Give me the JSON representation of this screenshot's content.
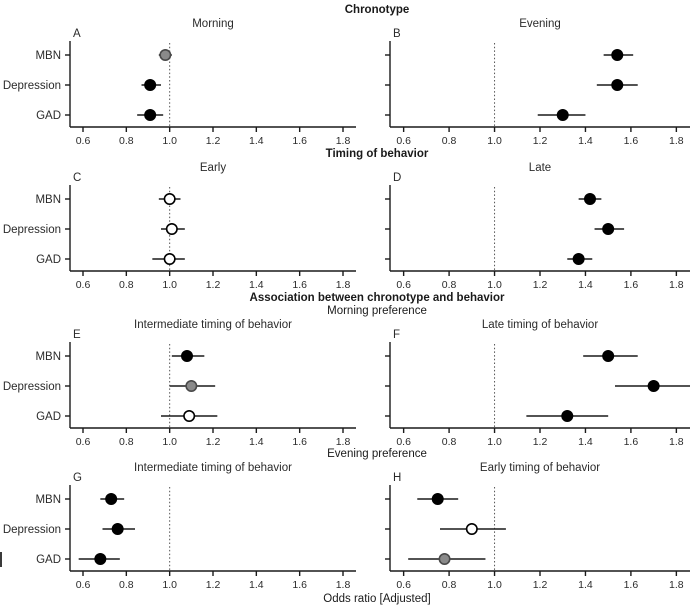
{
  "chart_data": {
    "type": "scatter",
    "subtype": "forest-plot",
    "xlabel": "Odds ratio [Adjusted]",
    "categories": [
      "MBN",
      "Depression",
      "GAD"
    ],
    "x_ticks": [
      "0.6",
      "0.8",
      "1.0",
      "1.2",
      "1.4",
      "1.6",
      "1.8"
    ],
    "xlim": [
      0.54,
      1.86
    ],
    "reference_line": 1.0,
    "grid": false,
    "marker_colors": {
      "black": "#000000",
      "gray": "#8a8a8a",
      "open": "#ffffff"
    },
    "sections": [
      {
        "title": "Chronotype",
        "panels": [
          {
            "letter": "A",
            "title": "Morning",
            "show_category_labels": true,
            "points": [
              {
                "category": "MBN",
                "or": 0.98,
                "ci": [
                  0.95,
                  1.01
                ],
                "style": "gray"
              },
              {
                "category": "Depression",
                "or": 0.91,
                "ci": [
                  0.87,
                  0.96
                ],
                "style": "black"
              },
              {
                "category": "GAD",
                "or": 0.91,
                "ci": [
                  0.85,
                  0.97
                ],
                "style": "black"
              }
            ]
          },
          {
            "letter": "B",
            "title": "Evening",
            "show_category_labels": false,
            "points": [
              {
                "category": "MBN",
                "or": 1.54,
                "ci": [
                  1.48,
                  1.61
                ],
                "style": "black"
              },
              {
                "category": "Depression",
                "or": 1.54,
                "ci": [
                  1.45,
                  1.63
                ],
                "style": "black"
              },
              {
                "category": "GAD",
                "or": 1.3,
                "ci": [
                  1.19,
                  1.4
                ],
                "style": "black"
              }
            ]
          }
        ]
      },
      {
        "title": "Timing of behavior",
        "panels": [
          {
            "letter": "C",
            "title": "Early",
            "show_category_labels": true,
            "points": [
              {
                "category": "MBN",
                "or": 1.0,
                "ci": [
                  0.95,
                  1.05
                ],
                "style": "open"
              },
              {
                "category": "Depression",
                "or": 1.01,
                "ci": [
                  0.96,
                  1.07
                ],
                "style": "open"
              },
              {
                "category": "GAD",
                "or": 1.0,
                "ci": [
                  0.92,
                  1.07
                ],
                "style": "open"
              }
            ]
          },
          {
            "letter": "D",
            "title": "Late",
            "show_category_labels": false,
            "points": [
              {
                "category": "MBN",
                "or": 1.42,
                "ci": [
                  1.37,
                  1.47
                ],
                "style": "black"
              },
              {
                "category": "Depression",
                "or": 1.5,
                "ci": [
                  1.44,
                  1.57
                ],
                "style": "black"
              },
              {
                "category": "GAD",
                "or": 1.37,
                "ci": [
                  1.32,
                  1.43
                ],
                "style": "black"
              }
            ]
          }
        ]
      },
      {
        "title": "Association between chronotype and behavior",
        "subtitle": "Morning preference",
        "panels": [
          {
            "letter": "E",
            "title": "Intermediate timing of behavior",
            "show_category_labels": true,
            "points": [
              {
                "category": "MBN",
                "or": 1.08,
                "ci": [
                  1.01,
                  1.16
                ],
                "style": "black"
              },
              {
                "category": "Depression",
                "or": 1.1,
                "ci": [
                  1.0,
                  1.21
                ],
                "style": "gray"
              },
              {
                "category": "GAD",
                "or": 1.09,
                "ci": [
                  0.96,
                  1.22
                ],
                "style": "open"
              }
            ]
          },
          {
            "letter": "F",
            "title": "Late timing of behavior",
            "show_category_labels": false,
            "points": [
              {
                "category": "MBN",
                "or": 1.5,
                "ci": [
                  1.39,
                  1.63
                ],
                "style": "black"
              },
              {
                "category": "Depression",
                "or": 1.7,
                "ci": [
                  1.53,
                  1.86
                ],
                "style": "black"
              },
              {
                "category": "GAD",
                "or": 1.32,
                "ci": [
                  1.14,
                  1.5
                ],
                "style": "black"
              }
            ]
          }
        ]
      },
      {
        "subtitle": "Evening preference",
        "panels": [
          {
            "letter": "G",
            "title": "Intermediate timing of behavior",
            "show_category_labels": true,
            "points": [
              {
                "category": "MBN",
                "or": 0.73,
                "ci": [
                  0.68,
                  0.79
                ],
                "style": "black"
              },
              {
                "category": "Depression",
                "or": 0.76,
                "ci": [
                  0.69,
                  0.84
                ],
                "style": "black"
              },
              {
                "category": "GAD",
                "or": 0.68,
                "ci": [
                  0.58,
                  0.77
                ],
                "style": "black"
              }
            ]
          },
          {
            "letter": "H",
            "title": "Early timing of behavior",
            "show_category_labels": false,
            "points": [
              {
                "category": "MBN",
                "or": 0.75,
                "ci": [
                  0.66,
                  0.84
                ],
                "style": "black"
              },
              {
                "category": "Depression",
                "or": 0.9,
                "ci": [
                  0.76,
                  1.05
                ],
                "style": "open"
              },
              {
                "category": "GAD",
                "or": 0.78,
                "ci": [
                  0.62,
                  0.96
                ],
                "style": "gray"
              }
            ]
          }
        ]
      }
    ]
  }
}
